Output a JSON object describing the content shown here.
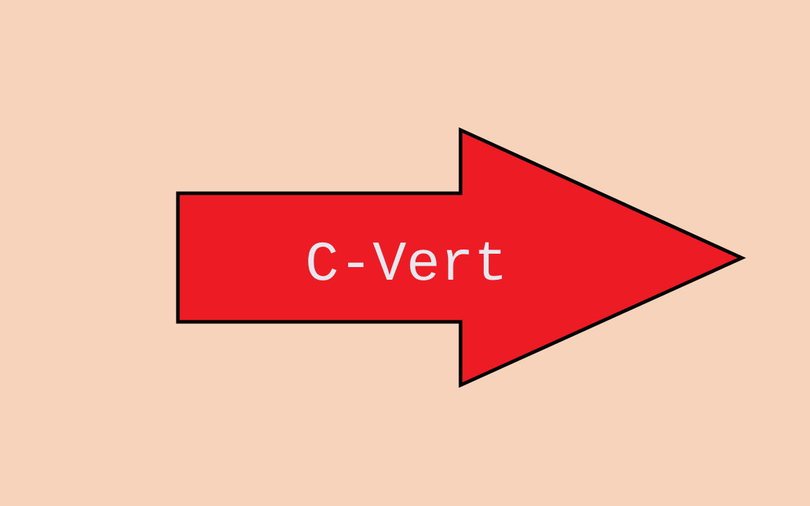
{
  "logo": {
    "text": "C-Vert",
    "colors": {
      "background": "#F6D3BA",
      "arrow_fill": "#ED1C24",
      "arrow_outline": "#000000",
      "text": "#E8E6EE"
    }
  }
}
